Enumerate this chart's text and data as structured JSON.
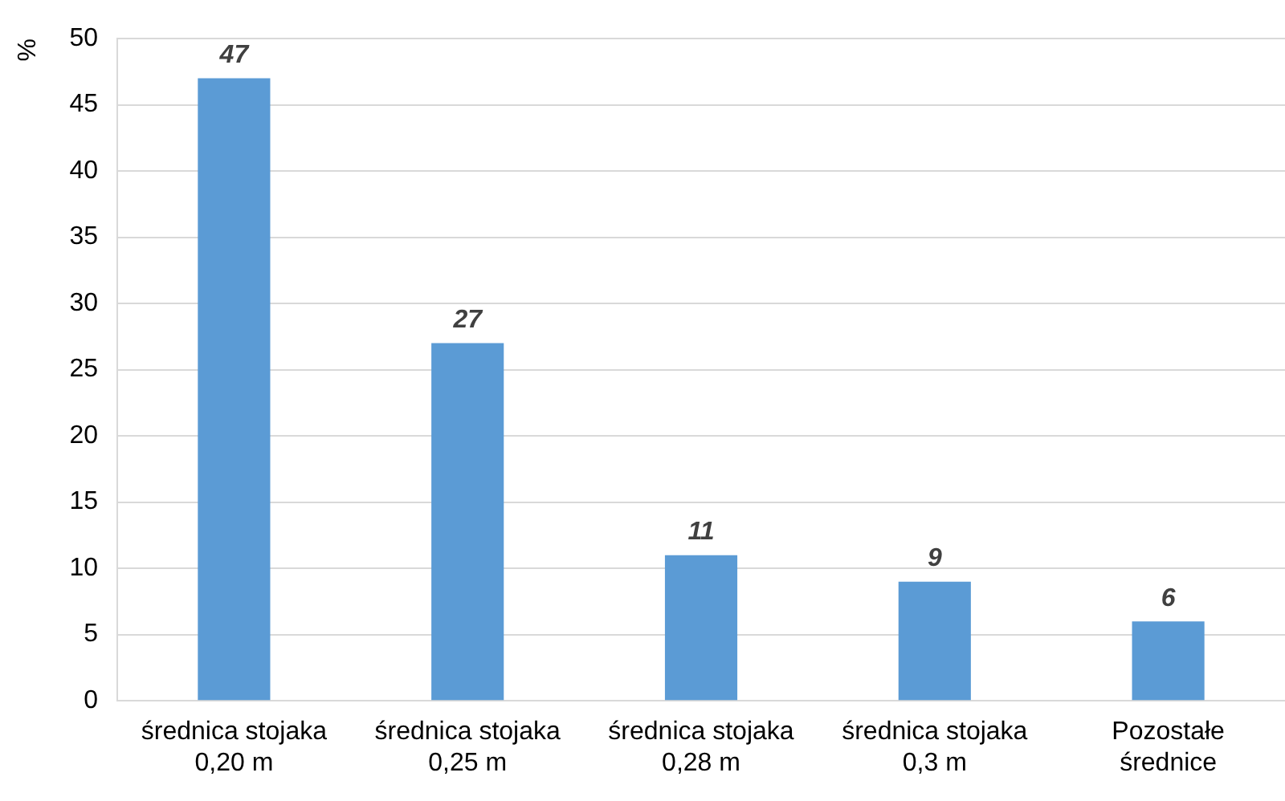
{
  "chart_data": {
    "type": "bar",
    "ylabel": "%",
    "categories": [
      "średnica stojaka\n0,20 m",
      "średnica stojaka\n0,25 m",
      "średnica stojaka\n0,28 m",
      "średnica stojaka\n0,3 m",
      "Pozostałe\nśrednice"
    ],
    "values": [
      47,
      27,
      11,
      9,
      6
    ],
    "color": "#5b9bd5",
    "ylim": [
      0,
      50
    ],
    "yticks": [
      0,
      5,
      10,
      15,
      20,
      25,
      30,
      35,
      40,
      45,
      50
    ],
    "grid": "y",
    "data_labels": true,
    "legend": false
  }
}
